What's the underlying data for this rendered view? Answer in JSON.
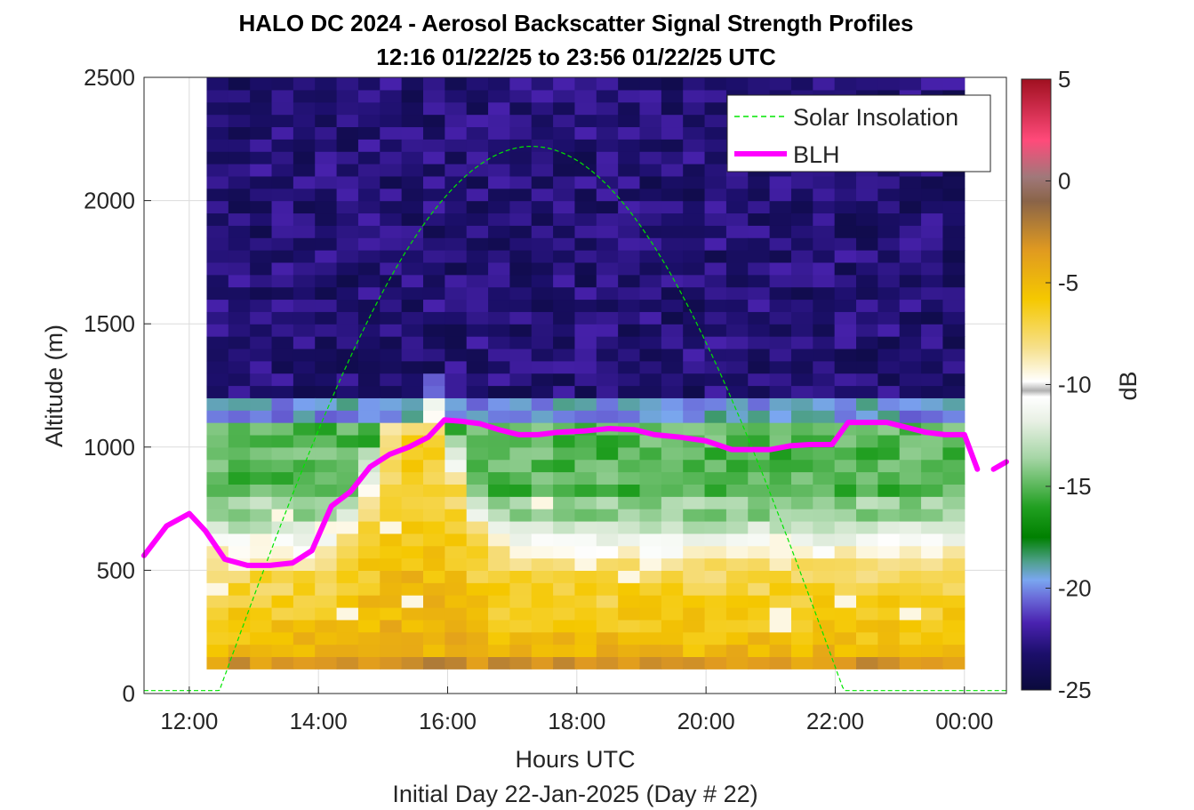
{
  "chart_data": {
    "type": "heatmap",
    "title": "HALO DC 2024 - Aerosol Backscatter Signal Strength Profiles",
    "subtitle": "12:16 01/22/25 to 23:56 01/22/25  UTC",
    "xlabel": "Hours UTC",
    "xlabel2": "Initial Day 22-Jan-2025 (Day # 22)",
    "ylabel": "Altitude (m)",
    "colorbar_label": "dB",
    "xlim": [
      11.3,
      24.65
    ],
    "ylim": [
      0,
      2500
    ],
    "clim": [
      -25,
      5
    ],
    "grid": true,
    "x_ticks": [
      {
        "value": 12,
        "label": "12:00"
      },
      {
        "value": 14,
        "label": "14:00"
      },
      {
        "value": 16,
        "label": "16:00"
      },
      {
        "value": 18,
        "label": "18:00"
      },
      {
        "value": 20,
        "label": "20:00"
      },
      {
        "value": 22,
        "label": "22:00"
      },
      {
        "value": 24,
        "label": "00:00"
      }
    ],
    "y_ticks": [
      {
        "value": 0,
        "label": "0"
      },
      {
        "value": 500,
        "label": "500"
      },
      {
        "value": 1000,
        "label": "1000"
      },
      {
        "value": 1500,
        "label": "1500"
      },
      {
        "value": 2000,
        "label": "2000"
      },
      {
        "value": 2500,
        "label": "2500"
      }
    ],
    "colorbar_ticks": [
      {
        "value": 5,
        "label": "5"
      },
      {
        "value": 0,
        "label": "0"
      },
      {
        "value": -5,
        "label": "-5"
      },
      {
        "value": -10,
        "label": "-10"
      },
      {
        "value": -15,
        "label": "-15"
      },
      {
        "value": -20,
        "label": "-20"
      },
      {
        "value": -25,
        "label": "-25"
      }
    ],
    "legend": {
      "position": "top-right",
      "entries": [
        {
          "name": "Solar Insolation",
          "color": "#00e600",
          "style": "dashed"
        },
        {
          "name": "BLH",
          "color": "#ff00ff",
          "style": "solid"
        }
      ]
    },
    "heatmap": {
      "time_start": 12.27,
      "time_end": 24.0,
      "columns": 35,
      "alt_start": 100,
      "alt_bin": 50,
      "max_alt": 2500
    },
    "blh": {
      "name": "BLH",
      "color": "#ff00ff",
      "x": [
        11.3,
        11.65,
        12.0,
        12.25,
        12.55,
        12.9,
        13.25,
        13.6,
        13.9,
        14.2,
        14.5,
        14.8,
        15.1,
        15.4,
        15.7,
        15.95,
        16.2,
        16.5,
        16.8,
        17.1,
        17.4,
        17.7,
        18.1,
        18.5,
        18.9,
        19.2,
        19.6,
        20.0,
        20.4,
        20.7,
        21.0,
        21.3,
        21.6,
        21.95,
        22.2,
        22.5,
        22.8,
        23.1,
        23.4,
        23.7,
        24.0,
        24.2
      ],
      "y": [
        560,
        680,
        730,
        660,
        545,
        520,
        520,
        530,
        580,
        760,
        820,
        920,
        970,
        1000,
        1040,
        1110,
        1105,
        1095,
        1070,
        1050,
        1050,
        1060,
        1065,
        1075,
        1070,
        1050,
        1040,
        1025,
        990,
        990,
        990,
        1005,
        1010,
        1010,
        1100,
        1100,
        1100,
        1080,
        1060,
        1050,
        1050,
        910
      ],
      "x2": [
        24.45,
        24.65
      ],
      "y2": [
        910,
        940
      ]
    },
    "solar": {
      "name": "Solar Insolation",
      "color": "#00e600",
      "peak_time": 17.3,
      "peak_alt": 2220,
      "half_width": 4.85,
      "baseline_alt": 12
    }
  }
}
